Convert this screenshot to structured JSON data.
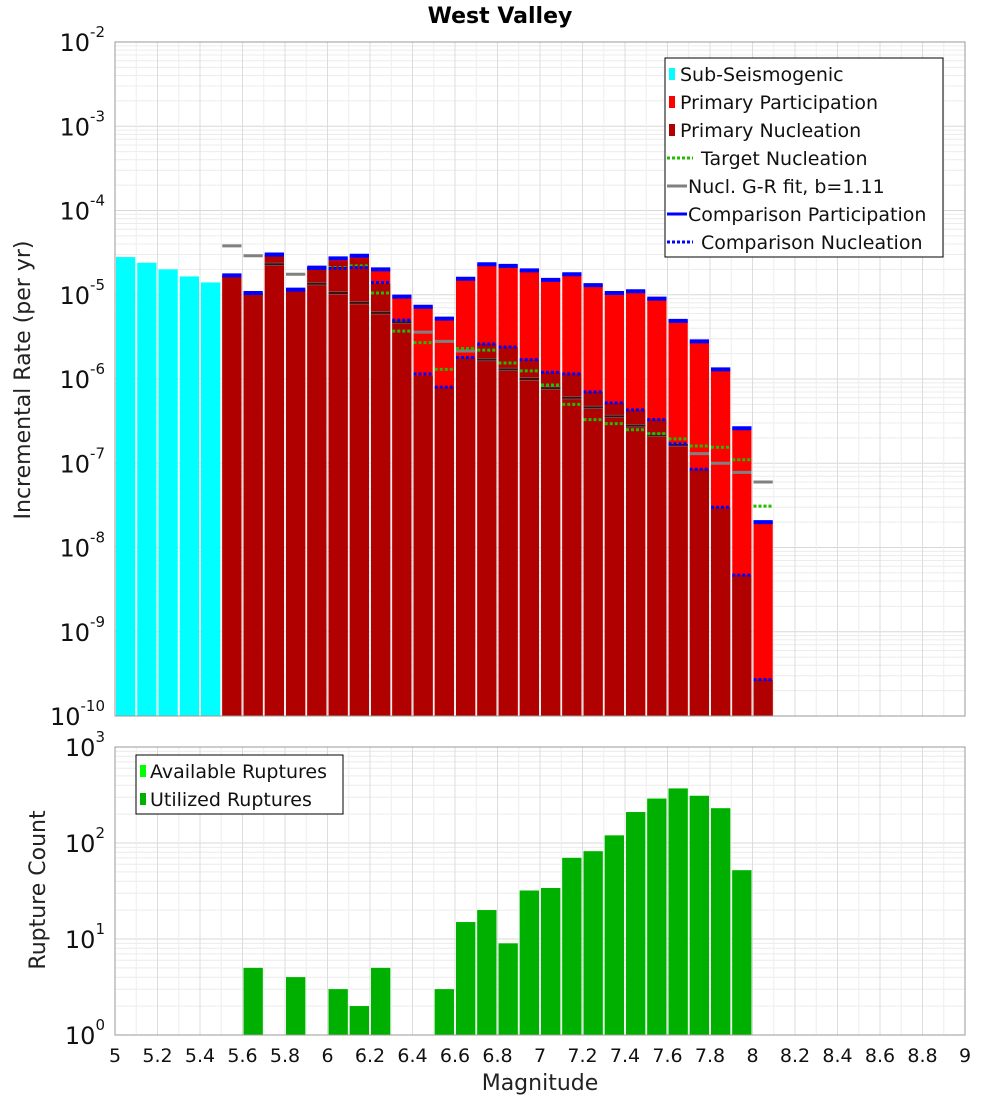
{
  "chart_data": [
    {
      "type": "bar",
      "title": "West Valley",
      "ylabel": "Incremental Rate (per yr)",
      "xlabel": "",
      "y_scale": "log",
      "ylim": [
        1e-10,
        0.01
      ],
      "xlim": [
        5,
        9
      ],
      "grid": true,
      "legend_position": "top-right",
      "colors": {
        "sub_seismogenic": "#00ffff",
        "primary_participation": "#ff0000",
        "primary_nucleation": "#b00000",
        "target_nucleation": "#22bb00",
        "gr_fit": "#808080",
        "comparison": "#0000ff"
      },
      "legend": [
        "Sub-Seismogenic",
        "Primary Participation",
        "Primary Nucleation",
        "Target Nucleation",
        "Nucl. G-R fit, b=1.11",
        "Comparison Participation",
        "Comparison Nucleation"
      ],
      "sub_seismogenic": {
        "x": [
          5.05,
          5.15,
          5.25,
          5.35,
          5.45
        ],
        "values": [
          2.8e-05,
          2.4e-05,
          2e-05,
          1.65e-05,
          1.4e-05
        ]
      },
      "magnitudes": [
        5.55,
        5.65,
        5.75,
        5.85,
        5.95,
        6.05,
        6.15,
        6.25,
        6.35,
        6.45,
        6.55,
        6.65,
        6.75,
        6.85,
        6.95,
        7.05,
        7.15,
        7.25,
        7.35,
        7.45,
        7.55,
        7.65,
        7.75,
        7.85,
        7.95,
        8.05
      ],
      "series": [
        {
          "name": "Primary Participation",
          "values": [
            1.7e-05,
            1.05e-05,
            3e-05,
            1.15e-05,
            2.1e-05,
            2.7e-05,
            2.9e-05,
            2e-05,
            9.5e-06,
            7.2e-06,
            5.2e-06,
            1.55e-05,
            2.3e-05,
            2.2e-05,
            1.95e-05,
            1.5e-05,
            1.75e-05,
            1.3e-05,
            1.05e-05,
            1.1e-05,
            9e-06,
            4.9e-06,
            2.8e-06,
            1.3e-06,
            2.6e-07,
            2e-08
          ]
        },
        {
          "name": "Primary Nucleation",
          "values": [
            1.7e-05,
            1.05e-05,
            3e-05,
            1.15e-05,
            2.1e-05,
            2.5e-05,
            2.7e-05,
            1.35e-05,
            5e-06,
            1.1e-06,
            8e-07,
            1.8e-06,
            2.6e-06,
            2.4e-06,
            1.7e-06,
            1.2e-06,
            1.15e-06,
            7e-07,
            5.2e-07,
            4.3e-07,
            3.3e-07,
            1.7e-07,
            8.5e-08,
            3e-08,
            4.7e-09,
            2.7e-10
          ]
        },
        {
          "name": "Target Nucleation",
          "values": [
            null,
            null,
            null,
            null,
            null,
            2.1e-05,
            2.2e-05,
            1.05e-05,
            3.7e-06,
            2.7e-06,
            1.3e-06,
            2.3e-06,
            2.2e-06,
            1.55e-06,
            1.25e-06,
            8.5e-07,
            5e-07,
            3.3e-07,
            2.95e-07,
            2.5e-07,
            2.25e-07,
            1.95e-07,
            1.6e-07,
            1.55e-07,
            1.1e-07,
            3.1e-08
          ]
        },
        {
          "name": "Nucl. G-R fit, b=1.11",
          "values": [
            3.8e-05,
            2.9e-05,
            2.3e-05,
            1.75e-05,
            1.35e-05,
            1.05e-05,
            8e-06,
            6.1e-06,
            4.7e-06,
            3.6e-06,
            2.8e-06,
            2.15e-06,
            1.7e-06,
            1.3e-06,
            1e-06,
            7.8e-07,
            6e-07,
            4.6e-07,
            3.6e-07,
            2.8e-07,
            2.15e-07,
            1.65e-07,
            1.3e-07,
            1e-07,
            7.8e-08,
            6e-08
          ]
        },
        {
          "name": "Comparison Participation",
          "values": [
            1.7e-05,
            1.05e-05,
            3e-05,
            1.15e-05,
            2.1e-05,
            2.7e-05,
            2.9e-05,
            2e-05,
            9.5e-06,
            7.2e-06,
            5.2e-06,
            1.55e-05,
            2.3e-05,
            2.2e-05,
            1.95e-05,
            1.5e-05,
            1.75e-05,
            1.3e-05,
            1.05e-05,
            1.1e-05,
            9e-06,
            4.9e-06,
            2.8e-06,
            1.3e-06,
            2.6e-07,
            2e-08
          ]
        },
        {
          "name": "Comparison Nucleation",
          "values": [
            null,
            null,
            null,
            null,
            2.05e-05,
            2.05e-05,
            2.1e-05,
            1.4e-05,
            5e-06,
            1.15e-06,
            8e-07,
            1.8e-06,
            2.6e-06,
            2.4e-06,
            1.7e-06,
            1.2e-06,
            1.15e-06,
            7e-07,
            5.2e-07,
            4.3e-07,
            3.3e-07,
            1.7e-07,
            8.5e-08,
            3e-08,
            4.7e-09,
            2.7e-10
          ]
        }
      ],
      "x_ticks": [],
      "y_ticks": [
        "10",
        "10",
        "10",
        "10",
        "10",
        "10",
        "10",
        "10",
        "10"
      ],
      "y_tick_exponents": [
        "-10",
        "-9",
        "-8",
        "-7",
        "-6",
        "-5",
        "-4",
        "-3",
        "-2"
      ]
    },
    {
      "type": "bar",
      "title": "",
      "ylabel": "Rupture Count",
      "xlabel": "Magnitude",
      "y_scale": "log",
      "ylim": [
        1,
        1000
      ],
      "xlim": [
        5,
        9
      ],
      "grid": true,
      "legend_position": "top-left",
      "colors": {
        "available": "#00ff00",
        "utilized": "#00b000"
      },
      "legend": [
        "Available Ruptures",
        "Utilized Ruptures"
      ],
      "magnitudes": [
        5.65,
        5.85,
        6.05,
        6.15,
        6.25,
        6.55,
        6.65,
        6.75,
        6.85,
        6.95,
        7.05,
        7.15,
        7.25,
        7.35,
        7.45,
        7.55,
        7.65,
        7.75,
        7.85,
        7.95
      ],
      "series": [
        {
          "name": "Utilized Ruptures",
          "values": [
            5,
            4,
            3,
            2,
            5,
            3,
            15,
            20,
            9,
            32,
            34,
            70,
            82,
            120,
            210,
            290,
            370,
            310,
            230,
            52
          ]
        },
        {
          "name": "Available Ruptures",
          "values": [
            5,
            4,
            3,
            2,
            5,
            3,
            15,
            20,
            9,
            32,
            34,
            70,
            82,
            120,
            210,
            290,
            370,
            310,
            230,
            52
          ]
        }
      ],
      "x_ticks": [
        "5",
        "5.2",
        "5.4",
        "5.6",
        "5.8",
        "6",
        "6.2",
        "6.4",
        "6.6",
        "6.8",
        "7",
        "7.2",
        "7.4",
        "7.6",
        "7.8",
        "8",
        "8.2",
        "8.4",
        "8.6",
        "8.8",
        "9"
      ],
      "x_tick_values": [
        5,
        5.2,
        5.4,
        5.6,
        5.8,
        6,
        6.2,
        6.4,
        6.6,
        6.8,
        7,
        7.2,
        7.4,
        7.6,
        7.8,
        8,
        8.2,
        8.4,
        8.6,
        8.8,
        9
      ],
      "y_ticks": [
        "10",
        "10",
        "10",
        "10"
      ],
      "y_tick_exponents": [
        "0",
        "1",
        "2",
        "3"
      ]
    }
  ]
}
